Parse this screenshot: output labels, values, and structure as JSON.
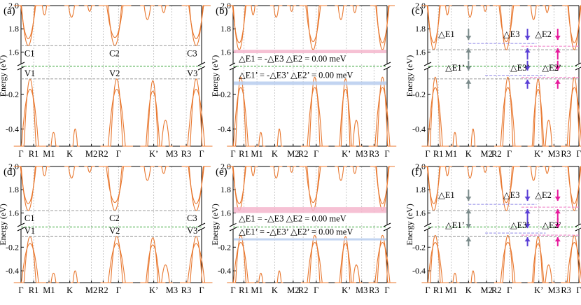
{
  "figure": {
    "ylabel": "Energy (eV)",
    "band_color": "#e8772e",
    "fermi_line_color": "#2ca02c",
    "ref_line_color": "#8c8c8c",
    "k_tick_labels": [
      "Γ",
      "R1",
      "M1",
      "K",
      "M2",
      "R2",
      "Γ",
      "K’",
      "M3",
      "R3",
      "Γ"
    ]
  },
  "chart_data": [
    {
      "panel": "(a)",
      "type": "line",
      "upper_yticks": [
        "2.0",
        "1.8",
        "1.6"
      ],
      "lower_yticks": [
        "-0.2",
        "-0.4"
      ],
      "upper_range_eV": [
        1.5,
        2.0
      ],
      "lower_range_eV": [
        -0.5,
        -0.05
      ],
      "conduction_min_labels": [
        "C1",
        "C2",
        "C3"
      ],
      "valence_max_labels": [
        "V1",
        "V2",
        "V3"
      ],
      "conduction_ref_eV": 1.655,
      "valence_ref_eV": -0.11
    },
    {
      "panel": "(b)",
      "type": "line",
      "upper_yticks": [
        "2.0",
        "1.8",
        "1.6"
      ],
      "lower_yticks": [
        "-0.2",
        "-0.4"
      ],
      "upper_range_eV": [
        1.5,
        2.0
      ],
      "lower_range_eV": [
        -0.5,
        -0.05
      ],
      "conduction_text": "△E1 = -△E3   △E2 = 0.00 meV",
      "valence_text": "△E1’ = -△E3’   △E2’ = 0.00 meV",
      "conduction_band_eV": [
        1.59,
        1.62
      ],
      "valence_band_eV": [
        -0.145,
        -0.125
      ]
    },
    {
      "panel": "(c)",
      "type": "line",
      "upper_yticks": [
        "2.0",
        "1.8",
        "1.6"
      ],
      "lower_yticks": [
        "-0.2",
        "-0.4"
      ],
      "upper_range_eV": [
        1.5,
        2.0
      ],
      "lower_range_eV": [
        -0.5,
        -0.05
      ],
      "conduction_labels": [
        "△E1",
        "△E3",
        "△E2"
      ],
      "valence_labels": [
        "△E1’",
        "△E3’",
        "△E2’"
      ],
      "arrow_colors": [
        "#7a8a8a",
        "#5a3fd6",
        "#e6199c"
      ]
    },
    {
      "panel": "(d)",
      "type": "line",
      "upper_yticks": [
        "2.0",
        "1.8",
        "1.6"
      ],
      "lower_yticks": [
        "-0.2",
        "-0.4"
      ],
      "upper_range_eV": [
        1.5,
        2.0
      ],
      "lower_range_eV": [
        -0.5,
        -0.05
      ],
      "conduction_min_labels": [
        "C1",
        "C2",
        "C3"
      ],
      "valence_max_labels": [
        "V1",
        "V2",
        "V3"
      ],
      "conduction_ref_eV": 1.62,
      "valence_ref_eV": -0.11
    },
    {
      "panel": "(e)",
      "type": "line",
      "upper_yticks": [
        "2.0",
        "1.8",
        "1.6"
      ],
      "lower_yticks": [
        "-0.2",
        "-0.4"
      ],
      "upper_range_eV": [
        1.5,
        2.0
      ],
      "lower_range_eV": [
        -0.5,
        -0.05
      ],
      "conduction_text": "△E1 = -△E3   △E2 = 0.00 meV",
      "valence_text": "△E1’ = -△E3’   △E2’ = 0.00 meV",
      "conduction_band_eV": [
        1.6,
        1.65
      ],
      "valence_band_eV": [
        -0.135,
        -0.125
      ]
    },
    {
      "panel": "(f)",
      "type": "line",
      "upper_yticks": [
        "2.0",
        "1.8",
        "1.6"
      ],
      "lower_yticks": [
        "-0.2",
        "-0.4"
      ],
      "upper_range_eV": [
        1.5,
        2.0
      ],
      "lower_range_eV": [
        -0.5,
        -0.05
      ],
      "conduction_labels": [
        "△E1",
        "△E3",
        "△E2"
      ],
      "valence_labels": [
        "△E1’",
        "△E3’",
        "△E2’"
      ],
      "arrow_colors": [
        "#7a8a8a",
        "#5a3fd6",
        "#e6199c"
      ]
    }
  ]
}
